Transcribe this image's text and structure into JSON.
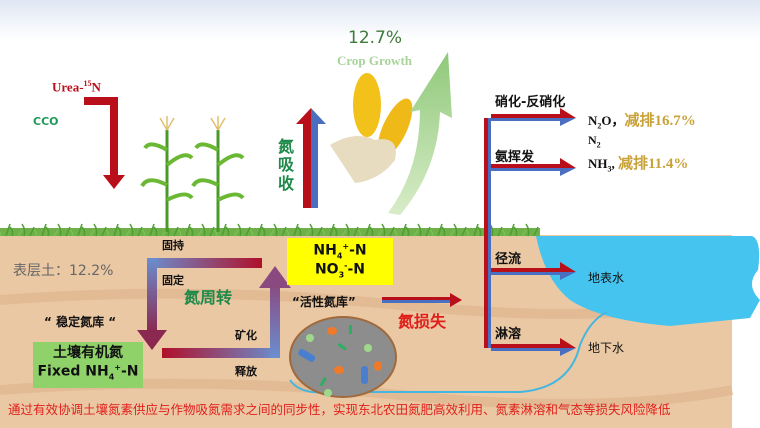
{
  "colors": {
    "red": "#b80f1a",
    "blue": "#4a6fc0",
    "green_text": "#1f8a4a",
    "gold": "#c9a23a",
    "soil": "#ebc8a4",
    "water": "#45c4ef",
    "yellow_box": "#ffff00",
    "green_box": "#8fd26a",
    "caption": "#e0201b"
  },
  "input": {
    "urea_label": "Urea-",
    "urea_sup": "15",
    "urea_n": "N",
    "cco": "CCO"
  },
  "uptake": {
    "label": "氮吸收",
    "yield_pct": "12.7%",
    "crop_growth": "Crop Growth"
  },
  "losses": {
    "nitrification": "硝化-反硝化",
    "n2o": "N",
    "n2o_sub": "2",
    "n2o_o": "O，",
    "n2o_reduction": "减排16.7%",
    "n2": "N",
    "n2_sub": "2",
    "volatilization": "氨挥发",
    "nh3": "NH",
    "nh3_sub": "3",
    "nh3_comma": ",",
    "nh3_reduction": "减排11.4%",
    "runoff": "径流",
    "surface_water": "地表水",
    "leaching": "淋溶",
    "groundwater": "地下水"
  },
  "soil": {
    "topsoil": "表层土：12.2%",
    "immobilization": "固持",
    "fixation": "固定",
    "mineralization": "矿化",
    "release": "释放",
    "cycle": "氮周转",
    "stable_pool": "“ 稳定氮库 “",
    "organic_n": "土壤有机氮",
    "fixed_nh4": "Fixed NH",
    "fixed_sub": "4",
    "fixed_sup": "+",
    "fixed_tail": "-N",
    "nh4": "NH",
    "nh4_sub": "4",
    "nh4_sup": "+",
    "nh4_tail": "-N",
    "no3": "NO",
    "no3_sub": "3",
    "no3_sup": "-",
    "no3_tail": "-N",
    "active_pool": "“活性氮库”",
    "n_loss": "氮损失"
  },
  "caption": "通过有效协调土壤氮素供应与作物吸氮需求之间的同步性，实现东北农田氮肥高效利用、氮素淋溶和气态等损失风险降低"
}
